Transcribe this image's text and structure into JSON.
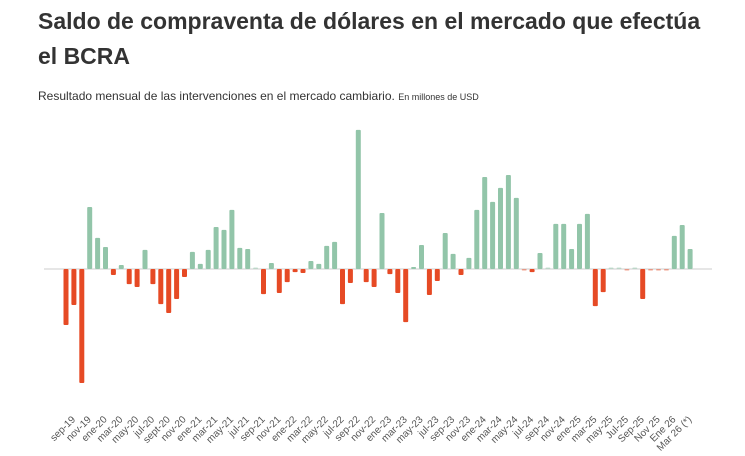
{
  "chart_data": {
    "type": "bar",
    "title": "Saldo de compraventa de dólares en el mercado que efectúa el BCRA",
    "subtitle": "Resultado  mensual de las intervenciones en el mercado cambiario.",
    "unit_note": "En millones de USD",
    "tick_labels": [
      "sep-19",
      "nov-19",
      "ene-20",
      "mar-20",
      "may-20",
      "jul-20",
      "sept-20",
      "nov-20",
      "ene-21",
      "mar-21",
      "may-21",
      "jul-21",
      "sep-21",
      "nov-21",
      "ene-22",
      "mar-22",
      "may-22",
      "jul-22",
      "sep-22",
      "nov-22",
      "ene-23",
      "mar-23",
      "may-23",
      "jul-23",
      "sep-23",
      "nov-23",
      "ene-24",
      "mar-24",
      "may-24",
      "jul-24",
      "sep-24",
      "nov-24",
      "ene-25",
      "mar-25",
      "may-25",
      "Jul-25",
      "Sep-25",
      "Nov 25",
      "Ene 26",
      "Mar 26 (*)"
    ],
    "values": [
      -1960,
      -1260,
      -3990,
      2170,
      1090,
      770,
      -210,
      140,
      -530,
      -630,
      670,
      -530,
      -1230,
      -1540,
      -1050,
      -280,
      600,
      180,
      670,
      1470,
      1370,
      2070,
      740,
      700,
      40,
      -880,
      210,
      -840,
      -460,
      -110,
      -140,
      280,
      180,
      810,
      950,
      -1230,
      -490,
      4870,
      -460,
      -630,
      1960,
      -180,
      -840,
      -1860,
      70,
      840,
      -910,
      -420,
      1260,
      530,
      -210,
      390,
      2070,
      3220,
      2350,
      2840,
      3290,
      2490,
      -40,
      -110,
      560,
      40,
      1580,
      1580,
      700,
      1580,
      1930,
      -1300,
      -810,
      40,
      40,
      -40,
      40,
      -1050,
      -40,
      -40,
      -40,
      1160,
      1540,
      700
    ],
    "ylim": [
      -4000,
      5000
    ],
    "grid": false,
    "colors": {
      "positive": "#92c5a9",
      "negative": "#e64a25",
      "baseline": "#e6e6e6",
      "text": "#333333"
    }
  }
}
